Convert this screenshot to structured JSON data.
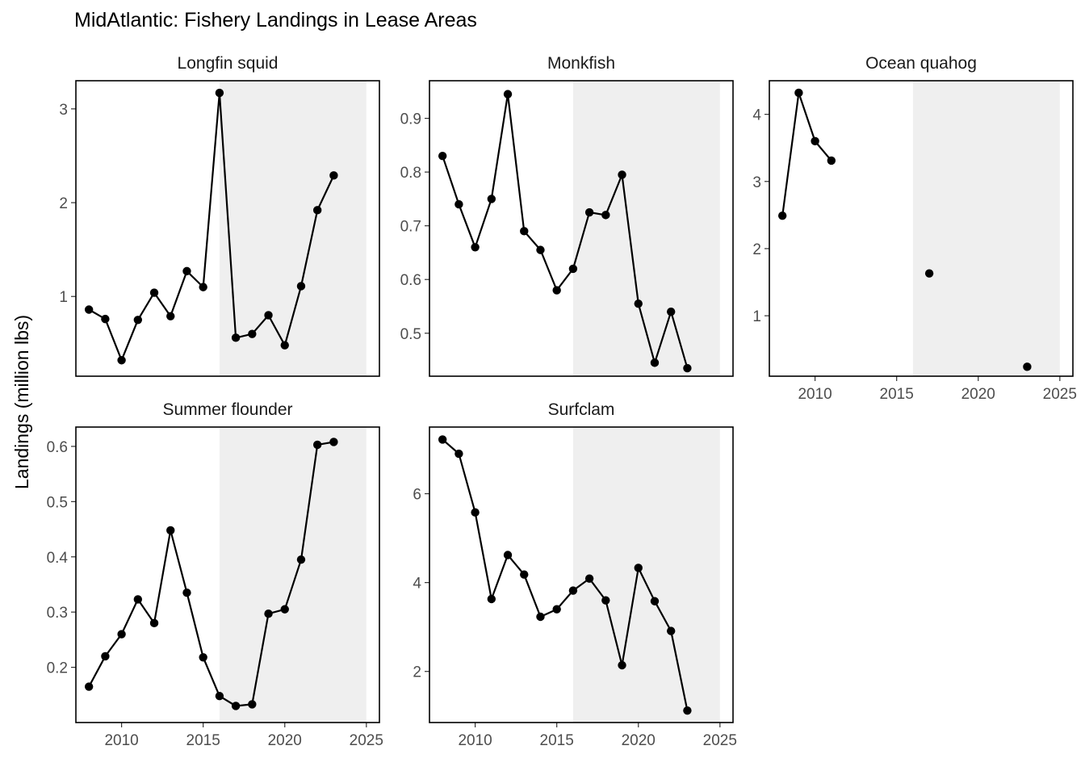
{
  "chart_data": {
    "type": "line",
    "title": "MidAtlantic: Fishery Landings in Lease Areas",
    "ylabel": "Landings (million lbs)",
    "xlabel": "",
    "shade_color": "#efefef",
    "line_color": "#000000",
    "grid": false,
    "shaded_period": [
      2016,
      2025
    ],
    "panels": [
      {
        "name": "Longfin squid",
        "xlim": [
          2007.2,
          2025.8
        ],
        "ylim": [
          0.15,
          3.3
        ],
        "yticks": [
          1,
          2,
          3
        ],
        "ytick_labels": [
          "1",
          "2",
          "3"
        ],
        "xticks": [],
        "xtick_labels": [],
        "x": [
          2008,
          2009,
          2010,
          2011,
          2012,
          2013,
          2014,
          2015,
          2016,
          2017,
          2018,
          2019,
          2020,
          2021,
          2022,
          2023
        ],
        "y": [
          0.86,
          0.76,
          0.32,
          0.75,
          1.04,
          0.79,
          1.27,
          1.1,
          3.17,
          0.56,
          0.6,
          0.8,
          0.48,
          1.11,
          1.92,
          2.29
        ],
        "segments": [
          [
            0,
            15
          ]
        ]
      },
      {
        "name": "Monkfish",
        "xlim": [
          2007.2,
          2025.8
        ],
        "ylim": [
          0.42,
          0.97
        ],
        "yticks": [
          0.5,
          0.6,
          0.7,
          0.8,
          0.9
        ],
        "ytick_labels": [
          "0.5",
          "0.6",
          "0.7",
          "0.8",
          "0.9"
        ],
        "xticks": [],
        "xtick_labels": [],
        "x": [
          2008,
          2009,
          2010,
          2011,
          2012,
          2013,
          2014,
          2015,
          2016,
          2017,
          2018,
          2019,
          2020,
          2021,
          2022,
          2023
        ],
        "y": [
          0.83,
          0.74,
          0.66,
          0.75,
          0.945,
          0.69,
          0.655,
          0.58,
          0.62,
          0.725,
          0.72,
          0.795,
          0.555,
          0.445,
          0.54,
          0.435
        ],
        "segments": [
          [
            0,
            15
          ]
        ]
      },
      {
        "name": "Ocean quahog",
        "xlim": [
          2007.2,
          2025.8
        ],
        "ylim": [
          0.1,
          4.5
        ],
        "yticks": [
          1,
          2,
          3,
          4
        ],
        "ytick_labels": [
          "1",
          "2",
          "3",
          "4"
        ],
        "xticks": [
          2010,
          2015,
          2020,
          2025
        ],
        "xtick_labels": [
          "2010",
          "2015",
          "2020",
          "2025"
        ],
        "x": [
          2008,
          2009,
          2010,
          2011,
          2017,
          2023
        ],
        "y": [
          2.49,
          4.32,
          3.6,
          3.31,
          1.63,
          0.24
        ],
        "segments": [
          [
            0,
            3
          ]
        ]
      },
      {
        "name": "Summer flounder",
        "xlim": [
          2007.2,
          2025.8
        ],
        "ylim": [
          0.1,
          0.635
        ],
        "yticks": [
          0.2,
          0.3,
          0.4,
          0.5,
          0.6
        ],
        "ytick_labels": [
          "0.2",
          "0.3",
          "0.4",
          "0.5",
          "0.6"
        ],
        "xticks": [
          2010,
          2015,
          2020,
          2025
        ],
        "xtick_labels": [
          "2010",
          "2015",
          "2020",
          "2025"
        ],
        "x": [
          2008,
          2009,
          2010,
          2011,
          2012,
          2013,
          2014,
          2015,
          2016,
          2017,
          2018,
          2019,
          2020,
          2021,
          2022,
          2023
        ],
        "y": [
          0.165,
          0.22,
          0.26,
          0.323,
          0.28,
          0.448,
          0.335,
          0.218,
          0.148,
          0.13,
          0.133,
          0.297,
          0.305,
          0.395,
          0.603,
          0.608
        ],
        "segments": [
          [
            0,
            15
          ]
        ]
      },
      {
        "name": "Surfclam",
        "xlim": [
          2007.2,
          2025.8
        ],
        "ylim": [
          0.85,
          7.5
        ],
        "yticks": [
          2,
          4,
          6
        ],
        "ytick_labels": [
          "2",
          "4",
          "6"
        ],
        "xticks": [
          2010,
          2015,
          2020,
          2025
        ],
        "xtick_labels": [
          "2010",
          "2015",
          "2020",
          "2025"
        ],
        "x": [
          2008,
          2009,
          2010,
          2011,
          2012,
          2013,
          2014,
          2015,
          2016,
          2017,
          2018,
          2019,
          2020,
          2021,
          2022,
          2023
        ],
        "y": [
          7.22,
          6.9,
          5.58,
          3.63,
          4.62,
          4.18,
          3.23,
          3.4,
          3.82,
          4.09,
          3.6,
          2.14,
          4.33,
          3.58,
          2.91,
          1.12
        ],
        "segments": [
          [
            0,
            15
          ]
        ]
      }
    ]
  }
}
